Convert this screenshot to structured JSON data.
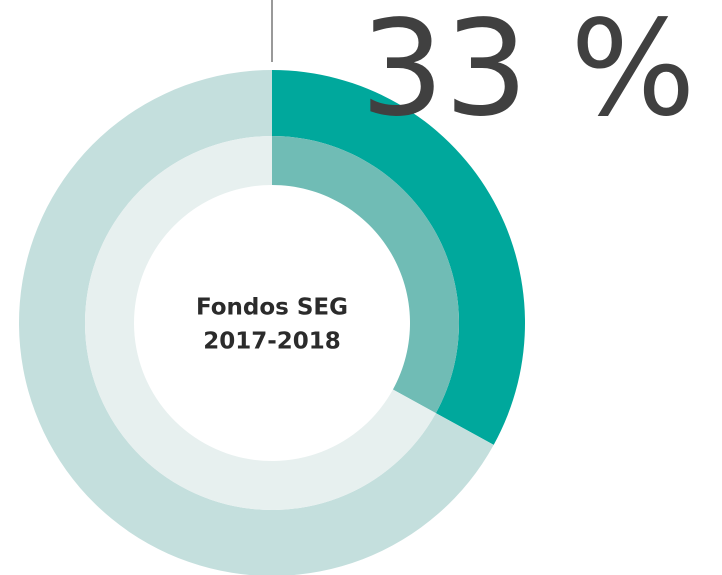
{
  "chart_data": {
    "type": "donut",
    "title": [
      "Fondos SEG",
      "2017-2018"
    ],
    "series": [
      {
        "values": [
          33,
          67
        ],
        "colors": [
          "#00a89c",
          "#c4dfdd"
        ],
        "value_labels": [
          "33 %",
          null
        ]
      },
      {
        "values": [
          33,
          67
        ],
        "colors": [
          "#70bcb5",
          "#e7f0ef"
        ]
      }
    ]
  }
}
